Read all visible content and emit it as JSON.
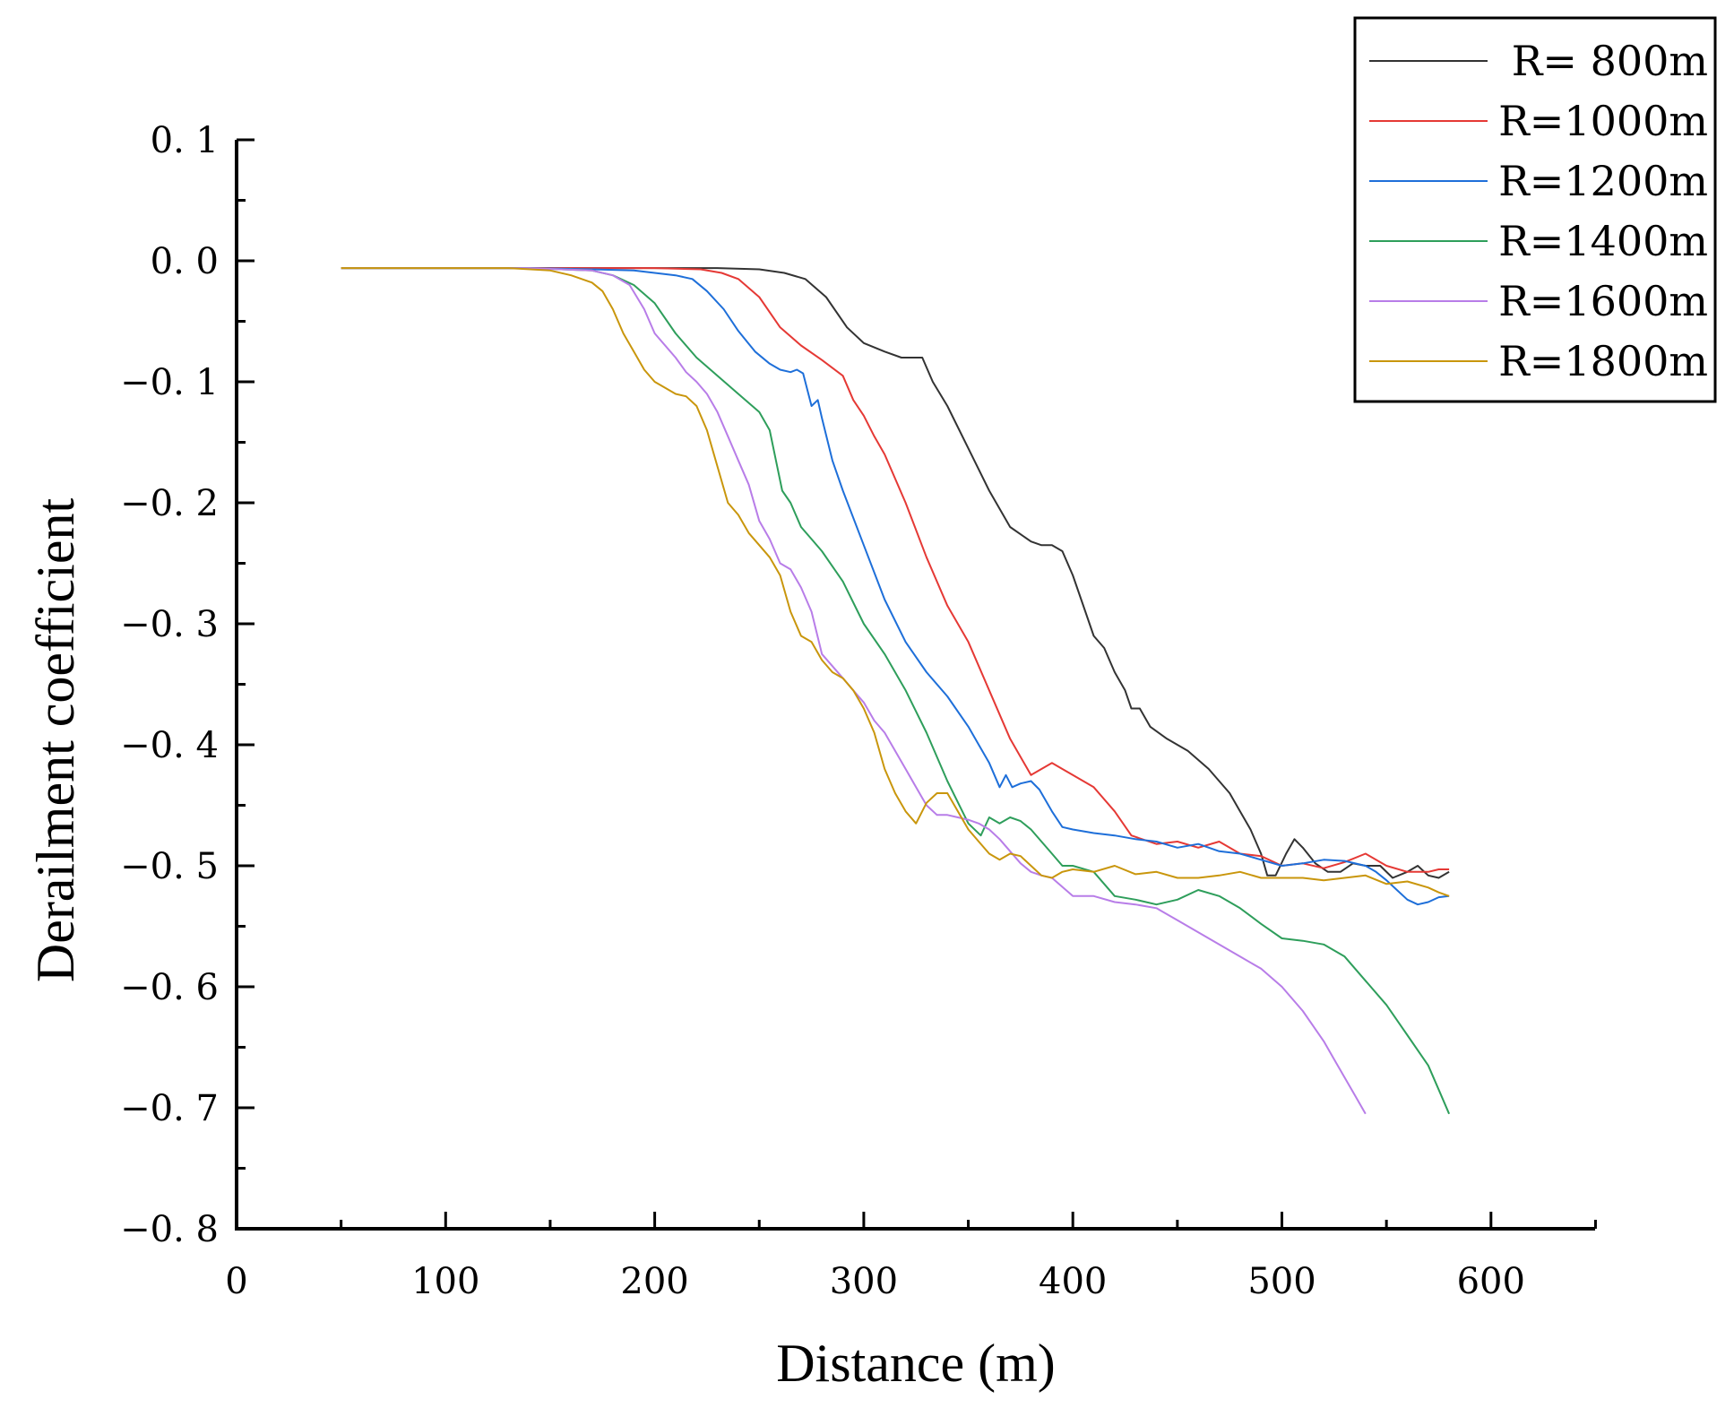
{
  "chart_data": {
    "type": "line",
    "title": "",
    "xlabel": "Distance (m)",
    "ylabel": "Derailment coefficient",
    "xlim": [
      0,
      650
    ],
    "ylim": [
      -0.8,
      0.1
    ],
    "grid": false,
    "legend_position": "top-right",
    "x_ticks": [
      {
        "value": 0,
        "label": "0"
      },
      {
        "value": 100,
        "label": "100"
      },
      {
        "value": 200,
        "label": "200"
      },
      {
        "value": 300,
        "label": "300"
      },
      {
        "value": 400,
        "label": "400"
      },
      {
        "value": 500,
        "label": "500"
      },
      {
        "value": 600,
        "label": "600"
      }
    ],
    "y_ticks": [
      {
        "value": 0.1,
        "label": "0. 1"
      },
      {
        "value": 0.0,
        "label": "0. 0"
      },
      {
        "value": -0.1,
        "label": "−0. 1"
      },
      {
        "value": -0.2,
        "label": "−0. 2"
      },
      {
        "value": -0.3,
        "label": "−0. 3"
      },
      {
        "value": -0.4,
        "label": "−0. 4"
      },
      {
        "value": -0.5,
        "label": "−0. 5"
      },
      {
        "value": -0.6,
        "label": "−0. 6"
      },
      {
        "value": -0.7,
        "label": "−0. 7"
      },
      {
        "value": -0.8,
        "label": "−0. 8"
      }
    ],
    "series": [
      {
        "name": "R= 800m",
        "color": "#333333",
        "x": [
          50,
          150,
          230,
          250,
          262,
          272,
          282,
          292,
          300,
          310,
          318,
          328,
          333,
          340,
          350,
          360,
          370,
          380,
          385,
          390,
          395,
          400,
          406,
          410,
          415,
          420,
          425,
          428,
          432,
          437,
          445,
          455,
          465,
          470,
          475,
          480,
          485,
          490,
          493,
          497,
          502,
          506,
          510,
          516,
          522,
          528,
          534,
          540,
          547,
          553,
          560,
          565,
          570,
          575,
          580
        ],
        "y": [
          -0.006,
          -0.006,
          -0.006,
          -0.007,
          -0.01,
          -0.015,
          -0.03,
          -0.055,
          -0.068,
          -0.075,
          -0.08,
          -0.08,
          -0.1,
          -0.12,
          -0.155,
          -0.19,
          -0.22,
          -0.232,
          -0.235,
          -0.235,
          -0.24,
          -0.26,
          -0.29,
          -0.31,
          -0.32,
          -0.34,
          -0.355,
          -0.37,
          -0.37,
          -0.385,
          -0.395,
          -0.405,
          -0.42,
          -0.43,
          -0.44,
          -0.455,
          -0.47,
          -0.49,
          -0.508,
          -0.508,
          -0.49,
          -0.478,
          -0.485,
          -0.498,
          -0.505,
          -0.505,
          -0.498,
          -0.5,
          -0.5,
          -0.51,
          -0.505,
          -0.5,
          -0.508,
          -0.51,
          -0.505
        ]
      },
      {
        "name": "R=1000m",
        "color": "#e53935",
        "x": [
          50,
          150,
          200,
          222,
          232,
          240,
          250,
          260,
          270,
          280,
          290,
          295,
          300,
          305,
          310,
          320,
          330,
          340,
          350,
          360,
          370,
          380,
          390,
          395,
          400,
          410,
          420,
          428,
          440,
          450,
          460,
          470,
          480,
          490,
          500,
          510,
          520,
          530,
          540,
          550,
          560,
          570,
          575,
          580
        ],
        "y": [
          -0.006,
          -0.006,
          -0.006,
          -0.007,
          -0.01,
          -0.015,
          -0.03,
          -0.055,
          -0.07,
          -0.082,
          -0.095,
          -0.115,
          -0.128,
          -0.145,
          -0.16,
          -0.2,
          -0.245,
          -0.285,
          -0.315,
          -0.355,
          -0.395,
          -0.425,
          -0.415,
          -0.42,
          -0.425,
          -0.435,
          -0.455,
          -0.475,
          -0.482,
          -0.48,
          -0.485,
          -0.48,
          -0.49,
          -0.492,
          -0.5,
          -0.498,
          -0.502,
          -0.497,
          -0.49,
          -0.5,
          -0.505,
          -0.505,
          -0.503,
          -0.503
        ],
        "line": "smooth"
      },
      {
        "name": "R=1200m",
        "color": "#1e6fd9",
        "x": [
          50,
          140,
          170,
          190,
          200,
          210,
          218,
          225,
          233,
          240,
          248,
          255,
          260,
          265,
          268,
          271,
          275,
          278,
          280,
          285,
          290,
          300,
          310,
          320,
          330,
          340,
          350,
          355,
          360,
          365,
          368,
          371,
          375,
          380,
          384,
          390,
          395,
          400,
          410,
          420,
          430,
          440,
          450,
          460,
          470,
          480,
          490,
          500,
          510,
          520,
          530,
          540,
          545,
          550,
          555,
          560,
          565,
          570,
          575,
          580
        ],
        "y": [
          -0.006,
          -0.006,
          -0.007,
          -0.008,
          -0.01,
          -0.012,
          -0.015,
          -0.025,
          -0.04,
          -0.058,
          -0.075,
          -0.085,
          -0.09,
          -0.092,
          -0.09,
          -0.093,
          -0.12,
          -0.115,
          -0.13,
          -0.165,
          -0.19,
          -0.235,
          -0.28,
          -0.315,
          -0.34,
          -0.36,
          -0.385,
          -0.4,
          -0.415,
          -0.435,
          -0.425,
          -0.435,
          -0.432,
          -0.43,
          -0.437,
          -0.455,
          -0.468,
          -0.47,
          -0.473,
          -0.475,
          -0.478,
          -0.48,
          -0.485,
          -0.482,
          -0.488,
          -0.49,
          -0.495,
          -0.5,
          -0.498,
          -0.495,
          -0.496,
          -0.5,
          -0.505,
          -0.512,
          -0.52,
          -0.528,
          -0.532,
          -0.53,
          -0.526,
          -0.525
        ]
      },
      {
        "name": "R=1400m",
        "color": "#2e9e5b",
        "x": [
          50,
          140,
          170,
          180,
          190,
          200,
          210,
          220,
          230,
          240,
          250,
          255,
          258,
          261,
          265,
          270,
          275,
          280,
          290,
          300,
          310,
          320,
          330,
          340,
          350,
          356,
          360,
          365,
          370,
          375,
          380,
          385,
          390,
          395,
          400,
          410,
          420,
          430,
          440,
          450,
          460,
          470,
          480,
          490,
          500,
          510,
          520,
          530,
          540,
          550,
          560,
          570,
          575,
          580
        ],
        "y": [
          -0.006,
          -0.006,
          -0.008,
          -0.012,
          -0.02,
          -0.035,
          -0.06,
          -0.08,
          -0.095,
          -0.11,
          -0.125,
          -0.14,
          -0.165,
          -0.19,
          -0.2,
          -0.22,
          -0.23,
          -0.24,
          -0.265,
          -0.3,
          -0.325,
          -0.355,
          -0.39,
          -0.43,
          -0.465,
          -0.475,
          -0.46,
          -0.465,
          -0.46,
          -0.463,
          -0.47,
          -0.48,
          -0.49,
          -0.5,
          -0.5,
          -0.505,
          -0.525,
          -0.528,
          -0.532,
          -0.528,
          -0.52,
          -0.525,
          -0.535,
          -0.548,
          -0.56,
          -0.562,
          -0.565,
          -0.575,
          -0.595,
          -0.615,
          -0.64,
          -0.665,
          -0.685,
          -0.705
        ]
      },
      {
        "name": "R=1600m",
        "color": "#b87de8",
        "x": [
          50,
          140,
          170,
          180,
          188,
          195,
          200,
          210,
          215,
          220,
          225,
          230,
          235,
          240,
          245,
          250,
          255,
          260,
          265,
          270,
          275,
          280,
          290,
          295,
          300,
          305,
          310,
          315,
          320,
          325,
          330,
          335,
          340,
          345,
          350,
          355,
          360,
          365,
          370,
          375,
          380,
          385,
          390,
          400,
          410,
          420,
          430,
          440,
          450,
          460,
          470,
          480,
          490,
          500,
          510,
          520,
          525,
          530,
          535,
          540
        ],
        "y": [
          -0.006,
          -0.006,
          -0.008,
          -0.012,
          -0.02,
          -0.04,
          -0.06,
          -0.08,
          -0.092,
          -0.1,
          -0.11,
          -0.125,
          -0.145,
          -0.165,
          -0.185,
          -0.215,
          -0.23,
          -0.25,
          -0.255,
          -0.27,
          -0.29,
          -0.325,
          -0.345,
          -0.355,
          -0.365,
          -0.38,
          -0.39,
          -0.405,
          -0.42,
          -0.435,
          -0.45,
          -0.458,
          -0.458,
          -0.46,
          -0.462,
          -0.465,
          -0.47,
          -0.478,
          -0.488,
          -0.498,
          -0.505,
          -0.508,
          -0.51,
          -0.525,
          -0.525,
          -0.53,
          -0.532,
          -0.535,
          -0.545,
          -0.555,
          -0.565,
          -0.575,
          -0.585,
          -0.6,
          -0.62,
          -0.645,
          -0.66,
          -0.675,
          -0.69,
          -0.705
        ]
      },
      {
        "name": "R=1800m",
        "color": "#c9960c",
        "x": [
          50,
          130,
          150,
          160,
          170,
          175,
          180,
          185,
          190,
          195,
          200,
          205,
          210,
          215,
          220,
          225,
          230,
          235,
          240,
          245,
          250,
          255,
          260,
          265,
          270,
          275,
          280,
          285,
          290,
          295,
          300,
          305,
          310,
          315,
          320,
          325,
          330,
          335,
          340,
          345,
          350,
          355,
          360,
          365,
          370,
          375,
          380,
          385,
          390,
          395,
          400,
          410,
          420,
          430,
          440,
          450,
          460,
          470,
          480,
          490,
          500,
          510,
          520,
          530,
          540,
          550,
          560,
          570,
          575,
          580
        ],
        "y": [
          -0.006,
          -0.006,
          -0.008,
          -0.012,
          -0.018,
          -0.025,
          -0.04,
          -0.06,
          -0.075,
          -0.09,
          -0.1,
          -0.105,
          -0.11,
          -0.112,
          -0.12,
          -0.14,
          -0.17,
          -0.2,
          -0.21,
          -0.225,
          -0.235,
          -0.245,
          -0.26,
          -0.29,
          -0.31,
          -0.315,
          -0.33,
          -0.34,
          -0.345,
          -0.355,
          -0.37,
          -0.39,
          -0.42,
          -0.44,
          -0.455,
          -0.465,
          -0.448,
          -0.44,
          -0.44,
          -0.455,
          -0.47,
          -0.48,
          -0.49,
          -0.495,
          -0.49,
          -0.492,
          -0.5,
          -0.508,
          -0.51,
          -0.505,
          -0.503,
          -0.505,
          -0.5,
          -0.507,
          -0.505,
          -0.51,
          -0.51,
          -0.508,
          -0.505,
          -0.51,
          -0.51,
          -0.51,
          -0.512,
          -0.51,
          -0.508,
          -0.515,
          -0.513,
          -0.518,
          -0.522,
          -0.525
        ]
      }
    ]
  }
}
